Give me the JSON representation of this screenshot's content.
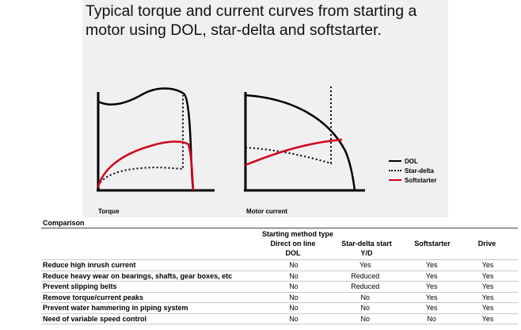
{
  "figure": {
    "title_line1": "Typical torque and current curves from starting a",
    "title_line2": "motor using DOL, star-delta and softstarter.",
    "torque_label": "Torque",
    "current_label": "Motor current",
    "legend": [
      {
        "label": "DOL",
        "style": "solid",
        "color": "#000000"
      },
      {
        "label": "Star-delta",
        "style": "dotted",
        "color": "#000000"
      },
      {
        "label": "Softstarter",
        "style": "solid",
        "color": "#d0021b"
      }
    ]
  },
  "comparison": {
    "label": "Comparison",
    "group_header": "Starting method type",
    "columns": [
      {
        "line1": "Direct on line",
        "line2": "DOL"
      },
      {
        "line1": "Star-delta start",
        "line2": "Y/D"
      },
      {
        "line1": "Softstarter",
        "line2": ""
      },
      {
        "line1": "Drive",
        "line2": ""
      }
    ],
    "rows": [
      {
        "label": "Reduce high inrush current",
        "values": [
          "No",
          "Yes",
          "Yes",
          "Yes"
        ]
      },
      {
        "label": "Reduce heavy wear on bearings, shafts, gear boxes, etc",
        "values": [
          "No",
          "Reduced",
          "Yes",
          "Yes"
        ]
      },
      {
        "label": "Prevent slipping belts",
        "values": [
          "No",
          "Reduced",
          "Yes",
          "Yes"
        ]
      },
      {
        "label": "Remove torque/current peaks",
        "values": [
          "No",
          "No",
          "Yes",
          "Yes"
        ]
      },
      {
        "label": "Prevent water hammering in piping system",
        "values": [
          "No",
          "No",
          "Yes",
          "Yes"
        ]
      },
      {
        "label": "Need of variable speed control",
        "values": [
          "No",
          "No",
          "No",
          "Yes"
        ]
      }
    ]
  }
}
